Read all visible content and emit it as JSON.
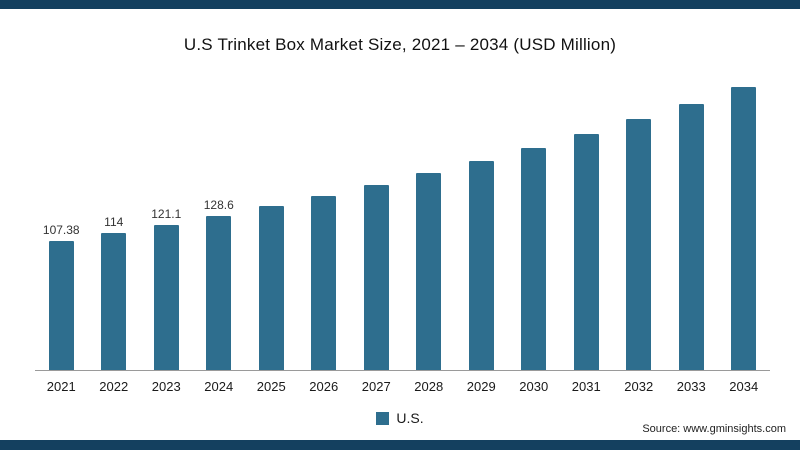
{
  "title": "U.S Trinket Box Market Size, 2021 – 2034 (USD Million)",
  "legend": {
    "label": "U.S."
  },
  "source": "Source: www.gminsights.com",
  "colors": {
    "bar": "#2e6e8e",
    "band": "#14405f",
    "axis": "#9a9a9a"
  },
  "chart_data": {
    "type": "bar",
    "title": "U.S Trinket Box Market Size, 2021 – 2034 (USD Million)",
    "categories": [
      "2021",
      "2022",
      "2023",
      "2024",
      "2025",
      "2026",
      "2027",
      "2028",
      "2029",
      "2030",
      "2031",
      "2032",
      "2033",
      "2034"
    ],
    "values": [
      107.38,
      114,
      121.1,
      128.6,
      136.7,
      145.2,
      154.3,
      163.9,
      174.1,
      185.0,
      196.5,
      208.8,
      221.8,
      235.6
    ],
    "value_labels": [
      "107.38",
      "114",
      "121.1",
      "128.6",
      "",
      "",
      "",
      "",
      "",
      "",
      "",
      "",
      "",
      ""
    ],
    "xlabel": "",
    "ylabel": "",
    "ylim": [
      0,
      250
    ],
    "grid": false,
    "legend": [
      "U.S."
    ],
    "legend_position": "bottom"
  }
}
